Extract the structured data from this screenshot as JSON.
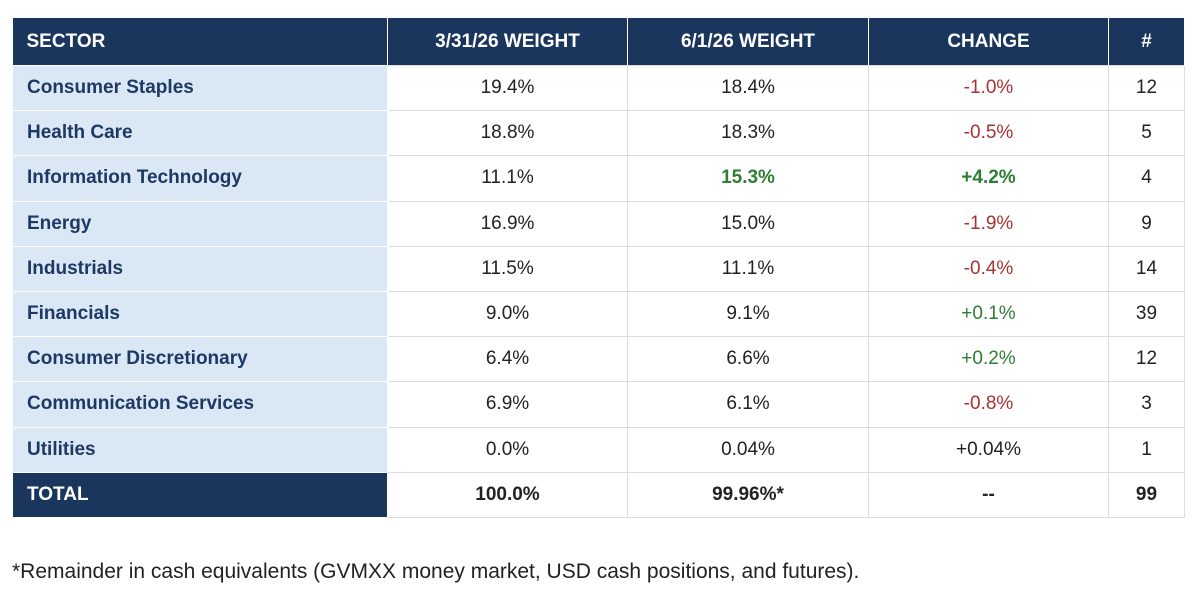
{
  "table": {
    "header": [
      "SECTOR",
      "3/31/26 WEIGHT",
      "6/1/26 WEIGHT",
      "CHANGE",
      "#"
    ],
    "rows": [
      [
        "Consumer Staples",
        "19.4%",
        "18.4%",
        "-1.0%",
        "12"
      ],
      [
        "Health Care",
        "18.8%",
        "18.3%",
        "-0.5%",
        "5"
      ],
      [
        "Information Technology",
        "11.1%",
        "15.3%",
        "+4.2%",
        "4"
      ],
      [
        "Energy",
        "16.9%",
        "15.0%",
        "-1.9%",
        "9"
      ],
      [
        "Industrials",
        "11.5%",
        "11.1%",
        "-0.4%",
        "14"
      ],
      [
        "Financials",
        "9.0%",
        "9.1%",
        "+0.1%",
        "39"
      ],
      [
        "Consumer Discretionary",
        "6.4%",
        "6.6%",
        "+0.2%",
        "12"
      ],
      [
        "Communication Services",
        "6.9%",
        "6.1%",
        "-0.8%",
        "3"
      ],
      [
        "Utilities",
        "0.0%",
        "0.04%",
        "+0.04%",
        "1"
      ]
    ],
    "total": [
      "TOTAL",
      "100.0%",
      "99.96%*",
      "--",
      "99"
    ]
  },
  "footnote": "*Remainder in cash equivalents (GVMXX money market, USD cash positions, and futures)."
}
